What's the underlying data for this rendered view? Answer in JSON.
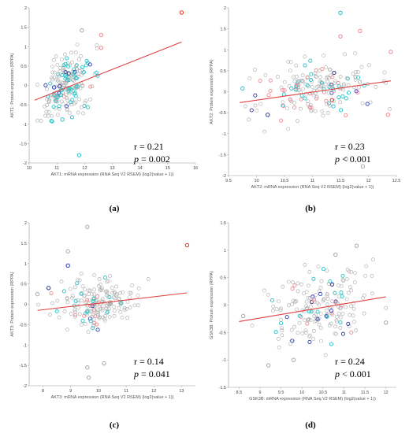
{
  "colors": {
    "regression": "#e04040",
    "point_gray": "#a8a8a8",
    "point_cyan": "#20c4c8",
    "point_blue": "#2838b0",
    "point_pink": "#f08a94",
    "point_red": "#e03020",
    "axis": "#999999"
  },
  "chart_data": [
    {
      "type": "scatter",
      "panel": "(a)",
      "xlabel": "AKT1: mRNA expression (RNA Seq V2 RSEM) (log2(value + 1))",
      "ylabel": "AKT1: Protein expression (RPPA)",
      "xlim": [
        10,
        16
      ],
      "ylim": [
        -2,
        2
      ],
      "xticks": [
        10,
        11,
        12,
        13,
        14,
        15,
        16
      ],
      "yticks": [
        -2,
        -1.5,
        -1,
        -0.5,
        0,
        0.5,
        1,
        1.5,
        2
      ],
      "xtick_labels": [
        "10",
        "11",
        "12",
        "13",
        "14",
        "15",
        "16"
      ],
      "ytick_labels": [
        "-2",
        "-1.5",
        "-1",
        "-0.5",
        "0",
        "0.5",
        "1",
        "1.5",
        "2"
      ],
      "regression": {
        "x": [
          10.2,
          15.5
        ],
        "y": [
          -0.38,
          1.12
        ]
      },
      "stat_r": "r = 0.21",
      "stat_p_prefix": "p",
      "stat_p_rest": " = 0.002",
      "cluster": {
        "seed": 11,
        "n": 200,
        "x_mean": 11.4,
        "x_sd": 0.45,
        "y_mean": 0.02,
        "y_sd": 0.38,
        "slope": 0.25,
        "x_min": 10.3,
        "x_max": 12.6,
        "cyan_frac": 0.3,
        "blue_frac": 0.03,
        "pink_frac": 0.02
      },
      "highlighted_points": [
        {
          "x": 15.5,
          "y": 1.88,
          "group": "red"
        },
        {
          "x": 12.6,
          "y": 1.3,
          "group": "pink"
        },
        {
          "x": 12.6,
          "y": 0.97,
          "group": "pink"
        },
        {
          "x": 11.8,
          "y": -1.8,
          "group": "cyan"
        },
        {
          "x": 11.9,
          "y": 1.42,
          "group": "gray"
        },
        {
          "x": 11.2,
          "y": -0.88,
          "group": "cyan"
        },
        {
          "x": 10.9,
          "y": -0.05,
          "group": "blue"
        },
        {
          "x": 11.1,
          "y": -0.02,
          "group": "blue"
        }
      ]
    },
    {
      "type": "scatter",
      "panel": "(b)",
      "xlabel": "AKT2: mRNA expression (RNA Seq V2 RSEM) (log2(value + 1))",
      "ylabel": "AKT2: Protein expression (RPPA)",
      "xlim": [
        9.5,
        12.5
      ],
      "ylim": [
        -2,
        2
      ],
      "xticks": [
        9.5,
        10,
        10.5,
        11,
        11.5,
        12,
        12.5
      ],
      "yticks": [
        -2,
        -1.5,
        -1,
        -0.5,
        0,
        0.5,
        1,
        1.5,
        2
      ],
      "xtick_labels": [
        "9.5",
        "10",
        "10.5",
        "11",
        "11.5",
        "12",
        "12.5"
      ],
      "ytick_labels": [
        "-2",
        "-1.5",
        "-1",
        "-0.5",
        "0",
        "0.5",
        "1",
        "1.5",
        "2"
      ],
      "regression": {
        "x": [
          9.7,
          12.4
        ],
        "y": [
          -0.26,
          0.26
        ]
      },
      "stat_r": "r = 0.23",
      "stat_p_prefix": "p",
      "stat_p_rest": " < 0.001",
      "cluster": {
        "seed": 23,
        "n": 190,
        "x_mean": 11.1,
        "x_sd": 0.5,
        "y_mean": 0.05,
        "y_sd": 0.33,
        "slope": 0.18,
        "x_min": 9.8,
        "x_max": 12.4,
        "cyan_frac": 0.15,
        "blue_frac": 0.03,
        "pink_frac": 0.18
      },
      "highlighted_points": [
        {
          "x": 11.5,
          "y": 1.88,
          "group": "cyan"
        },
        {
          "x": 11.85,
          "y": 1.45,
          "group": "pink"
        },
        {
          "x": 11.5,
          "y": 1.32,
          "group": "pink"
        },
        {
          "x": 11.9,
          "y": -1.78,
          "group": "gray"
        },
        {
          "x": 11.6,
          "y": -1.6,
          "group": "gray"
        },
        {
          "x": 9.75,
          "y": 0.08,
          "group": "cyan"
        },
        {
          "x": 10.2,
          "y": -0.55,
          "group": "blue"
        },
        {
          "x": 12.4,
          "y": 0.95,
          "group": "pink"
        },
        {
          "x": 12.35,
          "y": -0.55,
          "group": "pink"
        },
        {
          "x": 11.35,
          "y": -0.2,
          "group": "red"
        }
      ]
    },
    {
      "type": "scatter",
      "panel": "(c)",
      "xlabel": "AKT3: mRNA expression (RNA Seq V2 RSEM) (log2(value + 1))",
      "ylabel": "AKT3: Protein expression (RPPA)",
      "xlim": [
        7.5,
        13.5
      ],
      "ylim": [
        -2,
        2
      ],
      "xticks": [
        8,
        9,
        10,
        11,
        12,
        13
      ],
      "yticks": [
        -2,
        -1.5,
        -1,
        -0.5,
        0,
        0.5,
        1,
        1.5,
        2
      ],
      "xtick_labels": [
        "8",
        "9",
        "10",
        "11",
        "12",
        "13"
      ],
      "ytick_labels": [
        "-2",
        "-1.5",
        "-1",
        "-0.5",
        "0",
        "0.5",
        "1",
        "1.5",
        "2"
      ],
      "regression": {
        "x": [
          7.8,
          13.2
        ],
        "y": [
          -0.15,
          0.28
        ]
      },
      "stat_r": "r = 0.14",
      "stat_p_prefix": "p",
      "stat_p_rest": " = 0.041",
      "cluster": {
        "seed": 37,
        "n": 190,
        "x_mean": 10.0,
        "x_sd": 0.7,
        "y_mean": 0.0,
        "y_sd": 0.3,
        "slope": 0.06,
        "x_min": 7.8,
        "x_max": 11.8,
        "cyan_frac": 0.08,
        "blue_frac": 0.03,
        "pink_frac": 0.04
      },
      "highlighted_points": [
        {
          "x": 13.2,
          "y": 1.45,
          "group": "red"
        },
        {
          "x": 9.6,
          "y": 1.9,
          "group": "gray"
        },
        {
          "x": 8.9,
          "y": 1.3,
          "group": "gray"
        },
        {
          "x": 9.6,
          "y": -1.55,
          "group": "gray"
        },
        {
          "x": 9.65,
          "y": -1.8,
          "group": "gray"
        },
        {
          "x": 10.2,
          "y": -1.45,
          "group": "gray"
        },
        {
          "x": 8.2,
          "y": 0.4,
          "group": "blue"
        },
        {
          "x": 7.8,
          "y": 0.25,
          "group": "gray"
        },
        {
          "x": 8.9,
          "y": 0.95,
          "group": "blue"
        }
      ]
    },
    {
      "type": "scatter",
      "panel": "(d)",
      "xlabel": "GSK3B: mRNA expression (RNA Seq V2 RSEM) (log2(value + 1))",
      "ylabel": "GSK3B: Protein expression (RPPA)",
      "xlim": [
        8.25,
        12.25
      ],
      "ylim": [
        -1.5,
        1.5
      ],
      "xticks": [
        8.5,
        9,
        9.5,
        10,
        10.5,
        11,
        11.5,
        12
      ],
      "yticks": [
        -1.5,
        -1,
        -0.5,
        0,
        0.5,
        1,
        1.5
      ],
      "xtick_labels": [
        "8.5",
        "9",
        "9.5",
        "10",
        "10.5",
        "11",
        "11.5",
        "12"
      ],
      "ytick_labels": [
        "-1.5",
        "-1",
        "-0.5",
        "0",
        "0.5",
        "1",
        "1.5"
      ],
      "regression": {
        "x": [
          8.5,
          12.0
        ],
        "y": [
          -0.3,
          0.15
        ]
      },
      "stat_r": "r = 0.24",
      "stat_p_prefix": "p",
      "stat_p_rest": " < 0.001",
      "cluster": {
        "seed": 51,
        "n": 190,
        "x_mean": 10.4,
        "x_sd": 0.6,
        "y_mean": -0.05,
        "y_sd": 0.35,
        "slope": 0.14,
        "x_min": 8.5,
        "x_max": 12.0,
        "cyan_frac": 0.12,
        "blue_frac": 0.04,
        "pink_frac": 0.06
      },
      "highlighted_points": [
        {
          "x": 11.3,
          "y": 1.08,
          "group": "gray"
        },
        {
          "x": 10.8,
          "y": 0.92,
          "group": "gray"
        },
        {
          "x": 9.8,
          "y": -1.0,
          "group": "gray"
        },
        {
          "x": 8.6,
          "y": -0.2,
          "group": "gray"
        },
        {
          "x": 9.2,
          "y": -1.1,
          "group": "gray"
        },
        {
          "x": 12.0,
          "y": -0.32,
          "group": "gray"
        }
      ]
    }
  ]
}
